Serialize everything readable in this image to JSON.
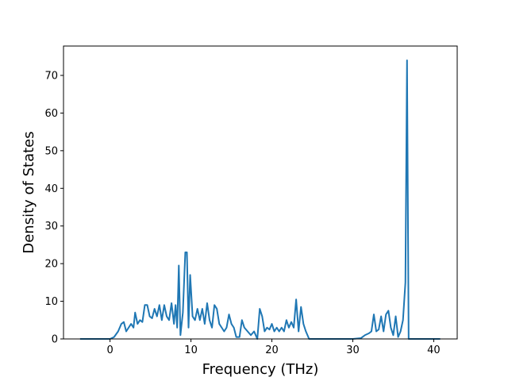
{
  "chart_data": {
    "type": "line",
    "title": "",
    "xlabel": "Frequency (THz)",
    "ylabel": "Density of States",
    "xlim": [
      -5.75,
      42.9
    ],
    "ylim": [
      0,
      77.8
    ],
    "xticks": [
      0,
      10,
      20,
      30,
      40
    ],
    "yticks": [
      0,
      10,
      20,
      30,
      40,
      50,
      60,
      70
    ],
    "grid": false,
    "legend": "none",
    "series": [
      {
        "color": "#1f77b4",
        "x": [
          -3.7,
          -2.0,
          0.0,
          0.5,
          1.0,
          1.4,
          1.7,
          2.0,
          2.3,
          2.6,
          2.9,
          3.1,
          3.4,
          3.7,
          4.0,
          4.3,
          4.6,
          4.9,
          5.2,
          5.5,
          5.8,
          6.1,
          6.4,
          6.7,
          7.0,
          7.3,
          7.6,
          7.9,
          8.1,
          8.3,
          8.5,
          8.7,
          9.0,
          9.3,
          9.5,
          9.7,
          9.9,
          10.2,
          10.5,
          10.8,
          11.1,
          11.4,
          11.7,
          12.0,
          12.3,
          12.6,
          12.9,
          13.2,
          13.5,
          13.8,
          14.1,
          14.4,
          14.7,
          15.0,
          15.3,
          15.6,
          16.0,
          16.3,
          16.6,
          17.0,
          17.4,
          17.8,
          18.2,
          18.5,
          18.8,
          19.1,
          19.4,
          19.7,
          20.0,
          20.3,
          20.6,
          20.9,
          21.2,
          21.5,
          21.8,
          22.1,
          22.4,
          22.7,
          23.0,
          23.3,
          23.6,
          23.9,
          24.2,
          24.6,
          25.0,
          26.0,
          30.0,
          31.0,
          31.5,
          32.0,
          32.3,
          32.6,
          32.9,
          33.2,
          33.5,
          33.8,
          34.1,
          34.4,
          34.7,
          35.0,
          35.3,
          35.6,
          35.9,
          36.2,
          36.5,
          36.7,
          36.9,
          37.1,
          38.0,
          40.0,
          40.8
        ],
        "y": [
          0,
          0,
          0,
          0.5,
          2,
          4,
          4.5,
          2,
          3,
          4,
          3,
          7,
          4,
          5,
          4.5,
          9,
          9,
          6,
          5.5,
          8,
          6,
          9,
          5,
          9,
          6,
          5,
          9.5,
          4,
          9,
          3,
          19.5,
          1,
          7,
          23,
          23,
          3,
          17,
          6,
          5,
          8,
          5,
          8,
          4,
          9.5,
          5,
          3,
          9,
          8,
          4,
          3,
          2,
          3,
          6.5,
          4,
          3,
          0.5,
          0.5,
          5,
          3,
          2,
          1,
          2,
          0,
          8,
          6,
          2,
          3,
          2.5,
          4,
          2,
          3,
          2,
          3,
          2,
          5,
          3,
          4.5,
          3,
          10.5,
          2,
          8.5,
          4,
          2,
          0,
          0,
          0,
          0,
          0.2,
          1,
          1.5,
          2,
          6.5,
          2,
          2.5,
          6,
          2,
          6.5,
          7.5,
          3,
          1,
          6,
          0.5,
          2,
          5,
          15,
          74,
          0,
          0,
          0,
          0,
          0
        ]
      }
    ]
  }
}
